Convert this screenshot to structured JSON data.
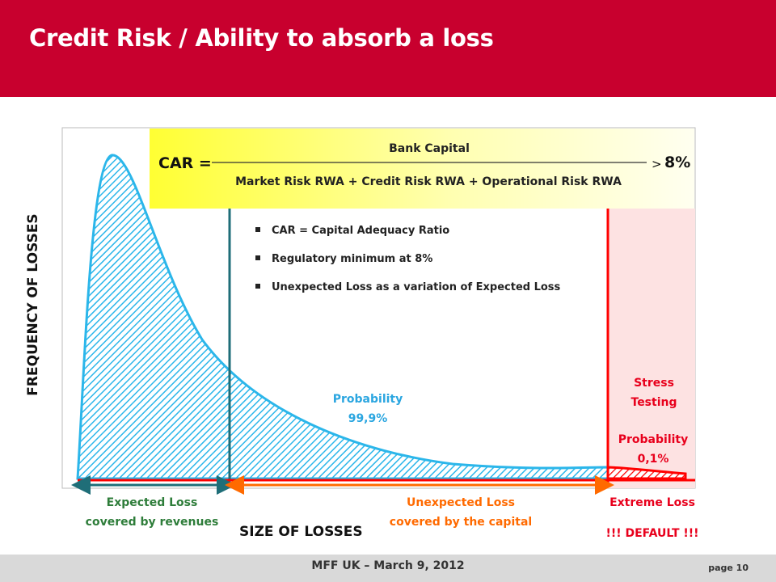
{
  "title": "Credit Risk / Ability to absorb a loss",
  "formula": {
    "lhs": "CAR =",
    "numerator": "Bank Capital",
    "denominator": "Market Risk RWA + Credit Risk RWA + Operational  Risk RWA",
    "rhs_symbol": ">",
    "rhs_value": "8%"
  },
  "bullets": [
    "CAR = Capital Adequacy Ratio",
    "Regulatory minimum at 8%",
    "Unexpected Loss as a variation of Expected Loss"
  ],
  "labels": {
    "y_axis": "FREQUENCY OF LOSSES",
    "x_axis": "SIZE OF LOSSES",
    "probability_main": [
      "Probability",
      "99,9%"
    ],
    "stress_testing": [
      "Stress",
      "Testing"
    ],
    "probability_tail": [
      "Probability",
      "0,1%"
    ],
    "expected_loss": [
      "Expected Loss",
      "covered by revenues"
    ],
    "unexpected_loss": [
      "Unexpected Loss",
      "covered by the capital"
    ],
    "extreme_loss": "Extreme Loss",
    "default": "!!! DEFAULT !!!"
  },
  "footer": {
    "text": "MFF UK – March 9, 2012",
    "page": "page 10"
  },
  "colors": {
    "header": "#c8002e",
    "curve": "#2bb6ea",
    "expected_line": "#1f6e78",
    "unexpected_arrow": "#ff6a00",
    "extreme": "#ff0000",
    "probability_text": "#2ba6e0",
    "stress_text": "#e8001c",
    "green_text": "#2e7d3a"
  }
}
